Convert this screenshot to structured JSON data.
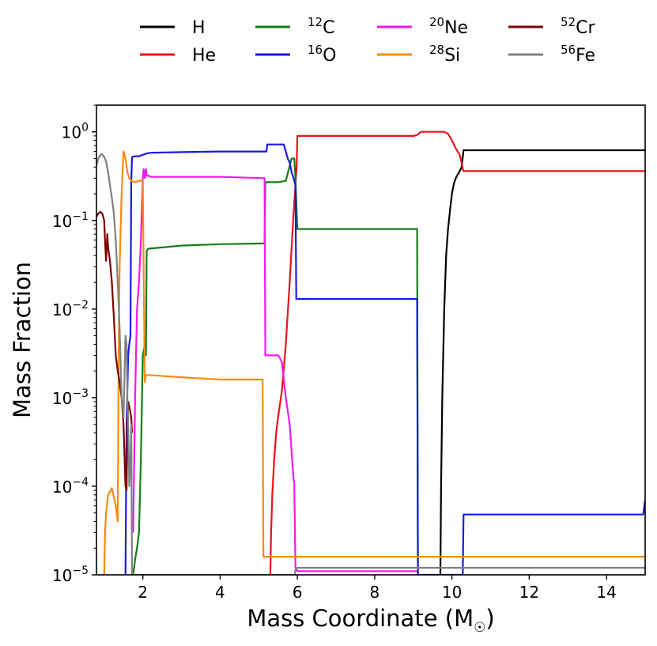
{
  "chart_data": {
    "type": "line",
    "xlabel": "Mass Coordinate (M",
    "xlabel_symbol": "☉",
    "xlabel_close": ")",
    "ylabel": "Mass Fraction",
    "xlim": [
      0.8,
      15.0
    ],
    "ylim": [
      1e-05,
      2.0
    ],
    "yscale": "log",
    "x_ticks": [
      {
        "value": 2,
        "label": "2"
      },
      {
        "value": 4,
        "label": "4"
      },
      {
        "value": 6,
        "label": "6"
      },
      {
        "value": 8,
        "label": "8"
      },
      {
        "value": 10,
        "label": "10"
      },
      {
        "value": 12,
        "label": "12"
      },
      {
        "value": 14,
        "label": "14"
      }
    ],
    "y_ticks": [
      {
        "value": 1e-05,
        "base": "10",
        "exp": "−5"
      },
      {
        "value": 0.0001,
        "base": "10",
        "exp": "−4"
      },
      {
        "value": 0.001,
        "base": "10",
        "exp": "−3"
      },
      {
        "value": 0.01,
        "base": "10",
        "exp": "−2"
      },
      {
        "value": 0.1,
        "base": "10",
        "exp": "−1"
      },
      {
        "value": 1,
        "base": "10",
        "exp": "0"
      }
    ],
    "legend_position": "top",
    "series": [
      {
        "key": "h",
        "name": "H",
        "mass_number": "",
        "element": "H",
        "color": "#000000",
        "x": [
          9.7,
          9.72,
          9.75,
          9.8,
          9.85,
          9.9,
          9.95,
          10.0,
          10.05,
          10.1,
          10.15,
          10.2,
          10.25,
          10.3,
          12.0,
          15.0
        ],
        "y": [
          1e-05,
          0.0001,
          0.001,
          0.01,
          0.04,
          0.08,
          0.13,
          0.2,
          0.26,
          0.3,
          0.33,
          0.36,
          0.4,
          0.62,
          0.62,
          0.62
        ]
      },
      {
        "key": "he",
        "name": "He",
        "mass_number": "",
        "element": "He",
        "color": "#e8131b",
        "x": [
          5.3,
          5.32,
          5.35,
          5.4,
          5.45,
          5.5,
          5.6,
          5.7,
          5.8,
          5.9,
          5.95,
          5.98,
          6.0,
          7.0,
          9.0,
          9.1,
          9.2,
          9.8,
          9.9,
          10.0,
          10.1,
          10.2,
          10.25,
          10.28,
          10.3,
          12.0,
          15.0
        ],
        "y": [
          1e-05,
          3e-05,
          8e-05,
          0.0002,
          0.0004,
          0.0006,
          0.0012,
          0.004,
          0.02,
          0.12,
          0.25,
          0.4,
          0.9,
          0.9,
          0.9,
          0.92,
          1.0,
          1.0,
          0.95,
          0.8,
          0.65,
          0.55,
          0.45,
          0.38,
          0.36,
          0.36,
          0.36
        ]
      },
      {
        "key": "c12",
        "name": "12C",
        "mass_number": "12",
        "element": "C",
        "color": "#157e15",
        "x": [
          1.75,
          1.8,
          1.85,
          1.9,
          1.95,
          2.0,
          2.05,
          2.08,
          2.1,
          2.12,
          2.15,
          3.0,
          4.0,
          5.15,
          5.17,
          5.5,
          5.7,
          5.85,
          5.92,
          5.95,
          6.0,
          7.0,
          8.0,
          9.1,
          9.12
        ],
        "y": [
          1e-05,
          1.5e-05,
          2e-05,
          3e-05,
          0.0002,
          0.003,
          0.004,
          0.003,
          0.045,
          0.047,
          0.048,
          0.052,
          0.054,
          0.055,
          0.27,
          0.27,
          0.28,
          0.5,
          0.5,
          0.3,
          0.08,
          0.08,
          0.08,
          0.08,
          1e-05
        ]
      },
      {
        "key": "o16",
        "name": "16O",
        "mass_number": "16",
        "element": "O",
        "color": "#1919e5",
        "x": [
          1.55,
          1.58,
          1.62,
          1.65,
          1.68,
          1.7,
          1.72,
          1.8,
          1.9,
          2.0,
          2.1,
          2.2,
          3.0,
          4.0,
          5.2,
          5.22,
          5.5,
          5.65,
          5.7,
          5.75,
          5.8,
          5.85,
          5.9,
          5.95,
          5.97,
          7.0,
          9.1,
          9.12,
          10.28,
          10.3,
          12.0,
          14.95,
          15.0
        ],
        "y": [
          1e-05,
          0.0005,
          0.003,
          0.004,
          0.005,
          0.28,
          0.52,
          0.53,
          0.53,
          0.55,
          0.57,
          0.58,
          0.59,
          0.6,
          0.6,
          0.72,
          0.72,
          0.72,
          0.6,
          0.5,
          0.45,
          0.35,
          0.3,
          0.25,
          0.013,
          0.013,
          0.013,
          1e-05,
          1e-05,
          4.8e-05,
          4.8e-05,
          4.8e-05,
          7e-05
        ]
      },
      {
        "key": "ne20",
        "name": "20Ne",
        "mass_number": "20",
        "element": "Ne",
        "color": "#f019ee",
        "x": [
          1.75,
          1.8,
          1.85,
          1.9,
          1.95,
          2.0,
          2.02,
          2.05,
          2.08,
          2.1,
          2.15,
          2.2,
          3.0,
          4.0,
          5.15,
          5.17,
          5.5,
          5.55,
          5.6,
          5.7,
          5.8,
          5.9,
          5.92,
          5.95,
          6.0,
          7.0,
          9.1
        ],
        "y": [
          3e-05,
          0.001,
          0.01,
          0.02,
          0.06,
          0.3,
          0.38,
          0.3,
          0.38,
          0.32,
          0.32,
          0.31,
          0.31,
          0.31,
          0.3,
          0.003,
          0.003,
          0.0028,
          0.0025,
          0.001,
          0.0005,
          0.00012,
          0.00011,
          1.2e-05,
          1.1e-05,
          1.1e-05,
          1.1e-05
        ]
      },
      {
        "key": "si28",
        "name": "28Si",
        "mass_number": "28",
        "element": "Si",
        "color": "#fa8a10",
        "x": [
          1.0,
          1.02,
          1.05,
          1.1,
          1.2,
          1.3,
          1.35,
          1.38,
          1.4,
          1.45,
          1.5,
          1.55,
          1.6,
          1.65,
          1.7,
          1.8,
          1.9,
          2.0,
          2.05,
          2.08,
          2.12,
          2.15,
          3.0,
          4.0,
          5.1,
          5.12,
          6.0,
          8.0,
          10.0,
          12.0,
          15.0
        ],
        "y": [
          1e-05,
          3e-05,
          5e-05,
          8e-05,
          9.5e-05,
          6e-05,
          4e-05,
          0.005,
          0.03,
          0.2,
          0.6,
          0.5,
          0.35,
          0.3,
          0.28,
          0.27,
          0.28,
          0.28,
          0.0015,
          0.0018,
          0.0018,
          0.0018,
          0.0017,
          0.0016,
          0.0016,
          1.6e-05,
          1.6e-05,
          1.6e-05,
          1.6e-05,
          1.6e-05,
          1.6e-05
        ]
      },
      {
        "key": "cr52",
        "name": "52Cr",
        "mass_number": "52",
        "element": "Cr",
        "color": "#7f0000",
        "x": [
          0.8,
          0.85,
          0.9,
          0.95,
          1.0,
          1.03,
          1.05,
          1.08,
          1.1,
          1.15,
          1.2,
          1.25,
          1.3,
          1.35,
          1.4,
          1.45,
          1.5,
          1.55,
          1.58,
          1.6,
          1.62,
          1.65,
          1.7,
          1.72
        ],
        "y": [
          0.11,
          0.12,
          0.125,
          0.12,
          0.1,
          0.05,
          0.035,
          0.07,
          0.05,
          0.035,
          0.02,
          0.008,
          0.003,
          0.002,
          0.0015,
          0.001,
          0.0005,
          0.0001,
          9e-05,
          0.0005,
          0.0009,
          0.0008,
          0.0006,
          0.0004
        ]
      },
      {
        "key": "fe56",
        "name": "56Fe",
        "mass_number": "56",
        "element": "Fe",
        "color": "#808080",
        "x": [
          0.8,
          0.85,
          0.9,
          0.95,
          1.0,
          1.05,
          1.1,
          1.15,
          1.2,
          1.25,
          1.3,
          1.35,
          1.4,
          1.42,
          1.45,
          1.5,
          1.55,
          1.58,
          1.6,
          1.62,
          1.65,
          1.68,
          1.7,
          1.72,
          5.93,
          5.95,
          6.0,
          8.0,
          10.0,
          12.0,
          15.0
        ],
        "y": [
          0.42,
          0.5,
          0.55,
          0.56,
          0.52,
          0.46,
          0.35,
          0.25,
          0.18,
          0.12,
          0.06,
          0.02,
          0.006,
          0.003,
          0.001,
          0.0006,
          0.005,
          0.004,
          0.001,
          0.0005,
          0.0001,
          0.0002,
          0.0005,
          1e-05,
          1e-05,
          1.15e-05,
          1.2e-05,
          1.2e-05,
          1.2e-05,
          1.2e-05,
          1.2e-05
        ]
      }
    ]
  }
}
